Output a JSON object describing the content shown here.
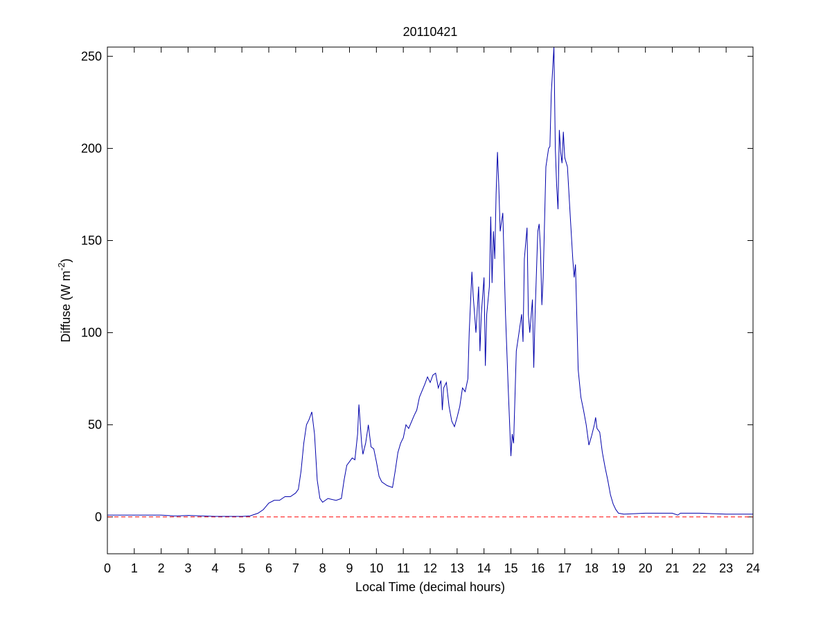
{
  "chart_data": {
    "type": "line",
    "title": "20110421",
    "xlabel": "Local Time (decimal hours)",
    "ylabel_parts": [
      "Diffuse (W m",
      "-2",
      ")"
    ],
    "xlim": [
      0,
      24
    ],
    "ylim": [
      -20,
      255
    ],
    "xticks": [
      0,
      1,
      2,
      3,
      4,
      5,
      6,
      7,
      8,
      9,
      10,
      11,
      12,
      13,
      14,
      15,
      16,
      17,
      18,
      19,
      20,
      21,
      22,
      23,
      24
    ],
    "yticks": [
      0,
      50,
      100,
      150,
      200,
      250
    ],
    "reference_line": {
      "value": 0,
      "color": "#ff0000",
      "style": "dashed"
    },
    "series": [
      {
        "color": "#0000aa",
        "x": [
          0,
          1,
          2,
          2.5,
          3,
          4,
          5,
          5.3,
          5.6,
          5.8,
          6,
          6.2,
          6.4,
          6.6,
          6.8,
          7,
          7.1,
          7.2,
          7.3,
          7.4,
          7.5,
          7.6,
          7.7,
          7.8,
          7.9,
          8,
          8.2,
          8.5,
          8.7,
          8.8,
          8.9,
          9,
          9.1,
          9.2,
          9.3,
          9.35,
          9.45,
          9.5,
          9.6,
          9.7,
          9.8,
          9.9,
          10,
          10.1,
          10.2,
          10.4,
          10.6,
          10.7,
          10.8,
          10.9,
          11,
          11.1,
          11.2,
          11.4,
          11.5,
          11.6,
          11.8,
          11.9,
          12,
          12.1,
          12.2,
          12.3,
          12.4,
          12.45,
          12.5,
          12.6,
          12.7,
          12.8,
          12.9,
          13,
          13.1,
          13.2,
          13.3,
          13.4,
          13.45,
          13.55,
          13.6,
          13.7,
          13.8,
          13.85,
          13.9,
          14,
          14.05,
          14.1,
          14.2,
          14.25,
          14.3,
          14.35,
          14.4,
          14.45,
          14.5,
          14.55,
          14.6,
          14.7,
          14.8,
          14.9,
          15,
          15.05,
          15.1,
          15.2,
          15.3,
          15.4,
          15.45,
          15.5,
          15.6,
          15.65,
          15.7,
          15.8,
          15.85,
          15.9,
          16,
          16.05,
          16.1,
          16.15,
          16.2,
          16.3,
          16.4,
          16.45,
          16.5,
          16.6,
          16.65,
          16.7,
          16.75,
          16.8,
          16.85,
          16.9,
          16.95,
          17,
          17.1,
          17.2,
          17.3,
          17.35,
          17.4,
          17.5,
          17.6,
          17.7,
          17.8,
          17.9,
          18,
          18.1,
          18.15,
          18.2,
          18.3,
          18.4,
          18.5,
          18.6,
          18.7,
          18.8,
          18.9,
          19,
          19.2,
          20,
          21,
          21.2,
          21.3,
          22,
          23,
          24
        ],
        "values": [
          1,
          1,
          1,
          0.5,
          0.8,
          0.3,
          0.3,
          0.5,
          2,
          4,
          7.5,
          9,
          9,
          11,
          11,
          13,
          15,
          25,
          40,
          50,
          53,
          57,
          45,
          20,
          10,
          8,
          10,
          9,
          10,
          20,
          28,
          30,
          32,
          31,
          45,
          61,
          40,
          34,
          40,
          50,
          38,
          37,
          30,
          22,
          19,
          17,
          16,
          25,
          35,
          40,
          43,
          50,
          48,
          55,
          58,
          65,
          72,
          76,
          73,
          77,
          78,
          70,
          74,
          58,
          70,
          73,
          60,
          52,
          49,
          54,
          60,
          70,
          68,
          75,
          100,
          133,
          120,
          100,
          125,
          90,
          110,
          130,
          82,
          110,
          125,
          163,
          127,
          155,
          140,
          175,
          198,
          180,
          155,
          165,
          110,
          70,
          33,
          45,
          40,
          90,
          100,
          110,
          95,
          140,
          157,
          110,
          100,
          118,
          81,
          110,
          155,
          159,
          145,
          115,
          130,
          190,
          200,
          201,
          230,
          255,
          200,
          180,
          167,
          210,
          198,
          192,
          209,
          195,
          190,
          165,
          140,
          130,
          137,
          80,
          65,
          58,
          50,
          39,
          44,
          50,
          54,
          48,
          46,
          35,
          27,
          20,
          12,
          7,
          4,
          2,
          1.5,
          2,
          2,
          1,
          2,
          2,
          1.5,
          1.5
        ]
      }
    ]
  }
}
